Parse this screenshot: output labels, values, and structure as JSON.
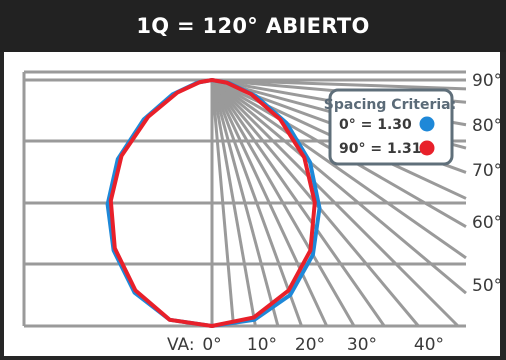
{
  "title": "1Q = 120° ABIERTO",
  "chart_data": {
    "type": "polar-photometric",
    "title": "1Q = 120° ABIERTO",
    "right_angle_labels": [
      "90°",
      "80°",
      "70°",
      "60°",
      "50°"
    ],
    "right_angles_deg": [
      90,
      80,
      70,
      60,
      50
    ],
    "bottom_label_prefix": "VA:",
    "bottom_angle_labels": [
      "0°",
      "10°",
      "20°",
      "30°",
      "40°"
    ],
    "bottom_angles_deg": [
      0,
      10,
      20,
      30,
      40
    ],
    "legend": {
      "title": "Spacing Criteria:",
      "entries": [
        {
          "label": "0° = 1.30",
          "color": "#1e88d8"
        },
        {
          "label": "90° = 1.31",
          "color": "#e8202a"
        }
      ]
    },
    "series": [
      {
        "name": "0°",
        "color": "#1e88d8",
        "angles_deg": [
          -90,
          -80,
          -70,
          -60,
          -50,
          -40,
          -30,
          -20,
          -10,
          0,
          10,
          20,
          30,
          40,
          50,
          60,
          70,
          80,
          90
        ],
        "values": [
          0,
          0.06,
          0.17,
          0.32,
          0.5,
          0.66,
          0.8,
          0.92,
          0.99,
          1.0,
          0.99,
          0.93,
          0.82,
          0.68,
          0.52,
          0.35,
          0.19,
          0.07,
          0
        ]
      },
      {
        "name": "90°",
        "color": "#e8202a",
        "angles_deg": [
          -90,
          -80,
          -70,
          -60,
          -50,
          -40,
          -30,
          -20,
          -10,
          0,
          10,
          20,
          30,
          40,
          50,
          60,
          70,
          80,
          90
        ],
        "values": [
          0,
          0.05,
          0.15,
          0.3,
          0.48,
          0.64,
          0.79,
          0.91,
          0.99,
          1.0,
          0.98,
          0.91,
          0.8,
          0.65,
          0.49,
          0.32,
          0.17,
          0.06,
          0
        ]
      }
    ],
    "grid": true
  },
  "colors": {
    "grid": "#9a9a9a",
    "title_bg": "#222222",
    "title_text": "#ffffff",
    "legend_border": "#5f6f7a"
  }
}
